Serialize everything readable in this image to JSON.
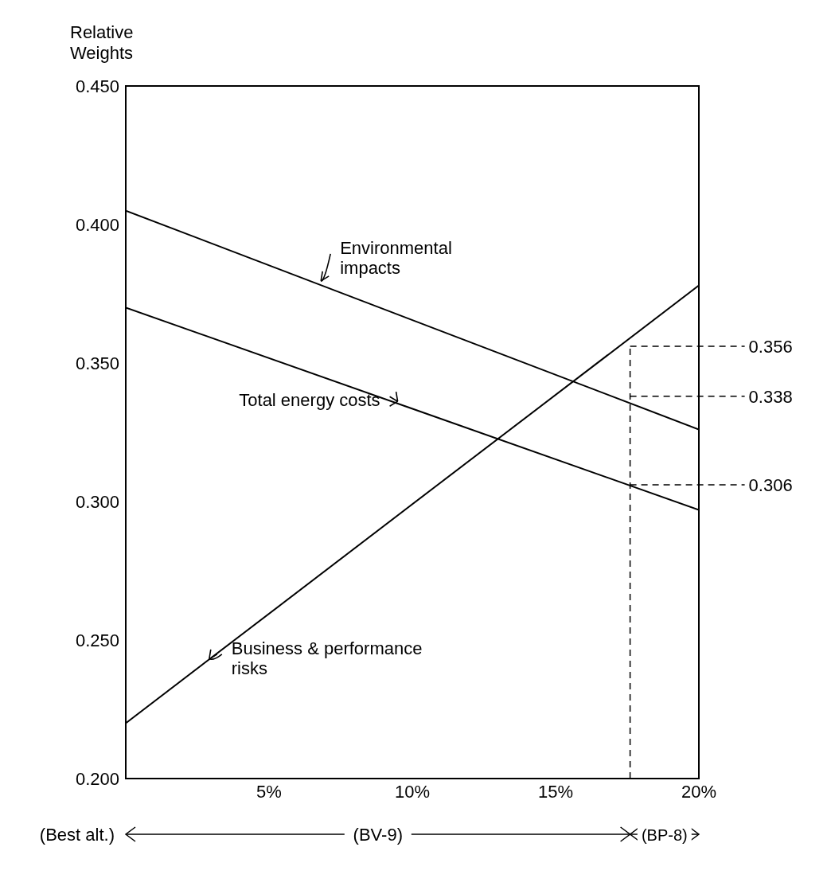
{
  "chart_data": {
    "type": "line",
    "ylabel": "Relative Weights",
    "x": [
      0,
      20
    ],
    "series": [
      {
        "values": [
          0.405,
          0.326
        ],
        "color": "#000000"
      },
      {
        "values": [
          0.37,
          0.297
        ],
        "color": "#000000"
      },
      {
        "values": [
          0.22,
          0.378
        ],
        "color": "#000000"
      }
    ],
    "xlim": [
      0,
      20
    ],
    "xticks": [
      {
        "value": 5,
        "label": "5%"
      },
      {
        "value": 10,
        "label": "10%"
      },
      {
        "value": 15,
        "label": "15%"
      },
      {
        "value": 20,
        "label": "20%"
      }
    ],
    "ylim": [
      0.2,
      0.45
    ],
    "yticks": [
      {
        "value": 0.2,
        "label": "0.200"
      },
      {
        "value": 0.25,
        "label": "0.250"
      },
      {
        "value": 0.3,
        "label": "0.300"
      },
      {
        "value": 0.35,
        "label": "0.350"
      },
      {
        "value": 0.4,
        "label": "0.400"
      },
      {
        "value": 0.45,
        "label": "0.450"
      }
    ],
    "ref_lines": [
      {
        "axis": "x",
        "value": 17.6,
        "line_style": "dashed",
        "color": "#000000"
      },
      {
        "axis": "y",
        "value": 0.356,
        "label": "0.356",
        "line_style": "dashed",
        "color": "#000000"
      },
      {
        "axis": "y",
        "value": 0.338,
        "label": "0.338",
        "line_style": "dashed",
        "color": "#000000"
      },
      {
        "axis": "y",
        "value": 0.306,
        "label": "0.306",
        "line_style": "dashed",
        "color": "#000000"
      }
    ],
    "annotations": [
      {
        "text": "Environmental impacts",
        "x": 6.7,
        "y": 0.3785
      },
      {
        "text": "Total energy costs",
        "x": 9.6,
        "y": 0.335
      },
      {
        "text": "Business & performance risks",
        "x": 2.8,
        "y": 0.242
      },
      "(Best alt.)",
      "(BV-9)",
      "(BP-8)"
    ],
    "grid": false,
    "legend": false,
    "marker": "none",
    "line_style": "solid"
  }
}
